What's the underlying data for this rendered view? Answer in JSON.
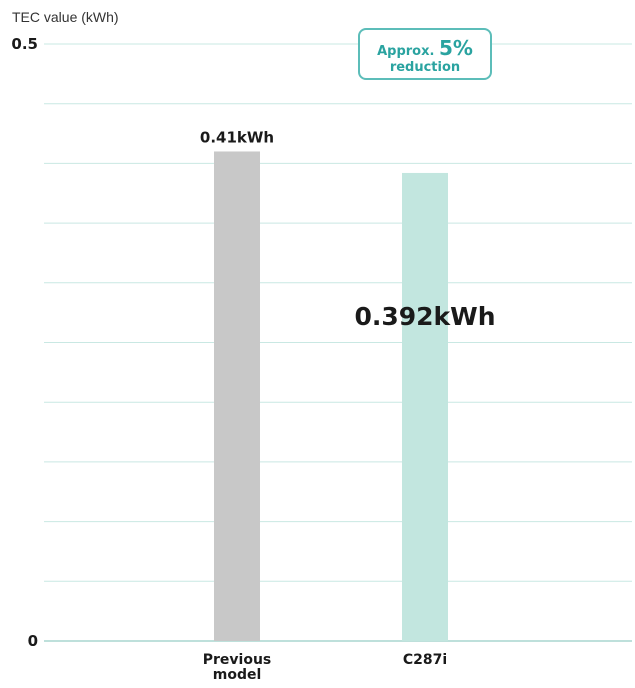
{
  "chart_data": {
    "type": "bar",
    "ylabel": "TEC value (kWh)",
    "ylim": [
      0,
      0.5
    ],
    "ytick_labels": [
      "0",
      "0.5"
    ],
    "grid": true,
    "categories": [
      "Previous\nmodel",
      "C287i"
    ],
    "values": [
      0.41,
      0.392
    ],
    "data_labels": [
      "0.41kWh",
      "0.392kWh"
    ],
    "bar_colors": [
      "#c8c8c8",
      "#c2e6df"
    ],
    "grid_color": "#c9e8e3",
    "annotation": {
      "prefix": "Approx.",
      "value": "5%",
      "suffix": "reduction",
      "color": "#2aa3a0",
      "border_color": "#5cbdb9"
    }
  }
}
